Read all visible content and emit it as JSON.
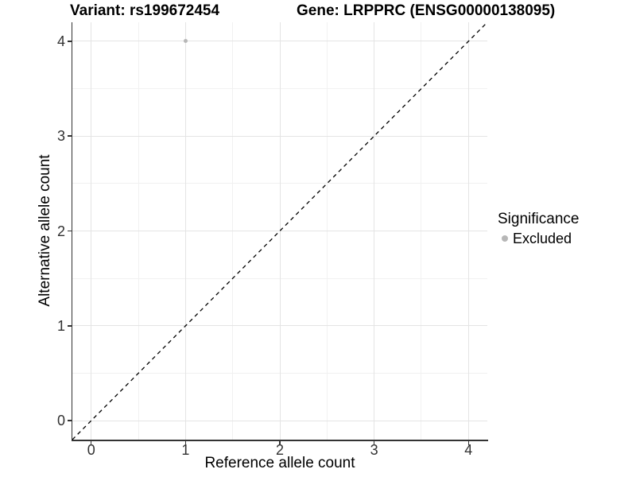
{
  "chart_data": {
    "type": "scatter",
    "title_left": "Variant: rs199672454",
    "title_right": "Gene: LRPPRC (ENSG00000138095)",
    "xlabel": "Reference allele count",
    "ylabel": "Alternative allele count",
    "xlim": [
      -0.2,
      4.2
    ],
    "ylim": [
      -0.2,
      4.2
    ],
    "xticks": [
      0,
      1,
      2,
      3,
      4
    ],
    "yticks": [
      0,
      1,
      2,
      3,
      4
    ],
    "minor_xticks": [
      0.5,
      1.5,
      2.5,
      3.5
    ],
    "minor_yticks": [
      0.5,
      1.5,
      2.5,
      3.5
    ],
    "grid": true,
    "series": [
      {
        "name": "Excluded",
        "color": "#b7b7b7",
        "points": [
          {
            "x": 1,
            "y": 4
          }
        ]
      }
    ],
    "reference_line": {
      "style": "dashed",
      "color": "#000000",
      "from": [
        -0.2,
        -0.2
      ],
      "to": [
        4.2,
        4.2
      ]
    },
    "legend": {
      "title": "Significance",
      "position": "right",
      "items": [
        {
          "label": "Excluded",
          "color": "#b7b7b7"
        }
      ]
    }
  },
  "colors": {
    "background": "#ffffff",
    "axis_line": "#333333",
    "tick_mark": "#333333",
    "tick_label": "#303030",
    "grid_major": "#e4e4e4",
    "grid_minor": "#f1f1f1",
    "text": "#000000"
  }
}
